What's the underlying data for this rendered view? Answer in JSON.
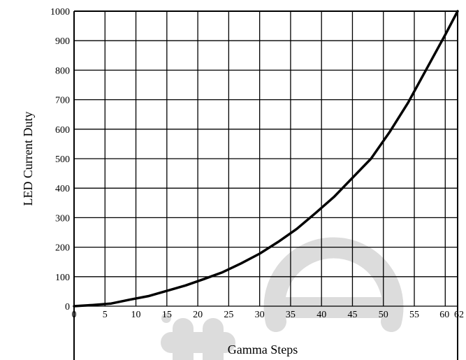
{
  "chart_data": {
    "type": "line",
    "title": "",
    "xlabel": "Gamma Steps",
    "ylabel": "LED Current Duty",
    "xlim": [
      0,
      62
    ],
    "ylim": [
      0,
      1000
    ],
    "grid": true,
    "x_ticks": [
      0,
      5,
      10,
      15,
      20,
      25,
      30,
      35,
      40,
      45,
      50,
      55,
      60,
      62
    ],
    "y_ticks": [
      0,
      100,
      200,
      300,
      400,
      500,
      600,
      700,
      800,
      900,
      1000
    ],
    "series": [
      {
        "x": [
          0,
          3,
          6,
          9,
          12,
          15,
          18,
          21,
          24,
          27,
          30,
          33,
          36,
          39,
          42,
          45,
          48,
          51,
          54,
          57,
          60,
          62
        ],
        "y": [
          0,
          4,
          9,
          22,
          34,
          52,
          70,
          92,
          115,
          145,
          178,
          218,
          262,
          315,
          370,
          435,
          500,
          590,
          690,
          805,
          920,
          1000
        ]
      }
    ]
  },
  "colors": {
    "line": "#000000",
    "grid": "#000000",
    "background": "#ffffff",
    "watermark": "#dcdcdc"
  }
}
